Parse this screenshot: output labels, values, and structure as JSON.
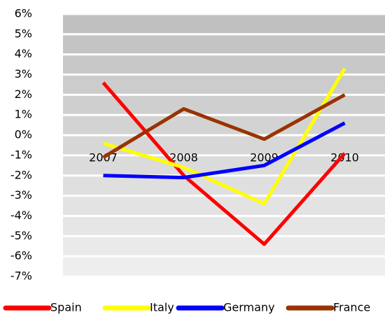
{
  "chart_data": {
    "type": "line",
    "categories": [
      "2007",
      "2008",
      "2009",
      "2010"
    ],
    "series": [
      {
        "name": "Spain",
        "color": "#ff0000",
        "values": [
          2.6,
          -2.0,
          -5.4,
          -0.9
        ]
      },
      {
        "name": "Italy",
        "color": "#ffff00",
        "values": [
          -0.4,
          -1.6,
          -3.4,
          3.3
        ]
      },
      {
        "name": "Germany",
        "color": "#0000ff",
        "values": [
          -2.0,
          -2.1,
          -1.5,
          0.6
        ]
      },
      {
        "name": "France",
        "color": "#993300",
        "values": [
          -1.1,
          1.3,
          -0.2,
          2.0
        ]
      }
    ],
    "ylim": [
      -7,
      6
    ],
    "yticks": [
      {
        "value": -7,
        "label": "-7%"
      },
      {
        "value": -6,
        "label": "-6%"
      },
      {
        "value": -5,
        "label": "-5%"
      },
      {
        "value": -4,
        "label": "-4%"
      },
      {
        "value": -3,
        "label": "-3%"
      },
      {
        "value": -2,
        "label": "-2%"
      },
      {
        "value": -1,
        "label": "-1%"
      },
      {
        "value": 0,
        "label": "0%"
      },
      {
        "value": 1,
        "label": "1%"
      },
      {
        "value": 2,
        "label": "2%"
      },
      {
        "value": 3,
        "label": "3%"
      },
      {
        "value": 4,
        "label": "4%"
      },
      {
        "value": 5,
        "label": "5%"
      },
      {
        "value": 6,
        "label": "6%"
      }
    ],
    "grid": true,
    "legend": "bottom"
  }
}
